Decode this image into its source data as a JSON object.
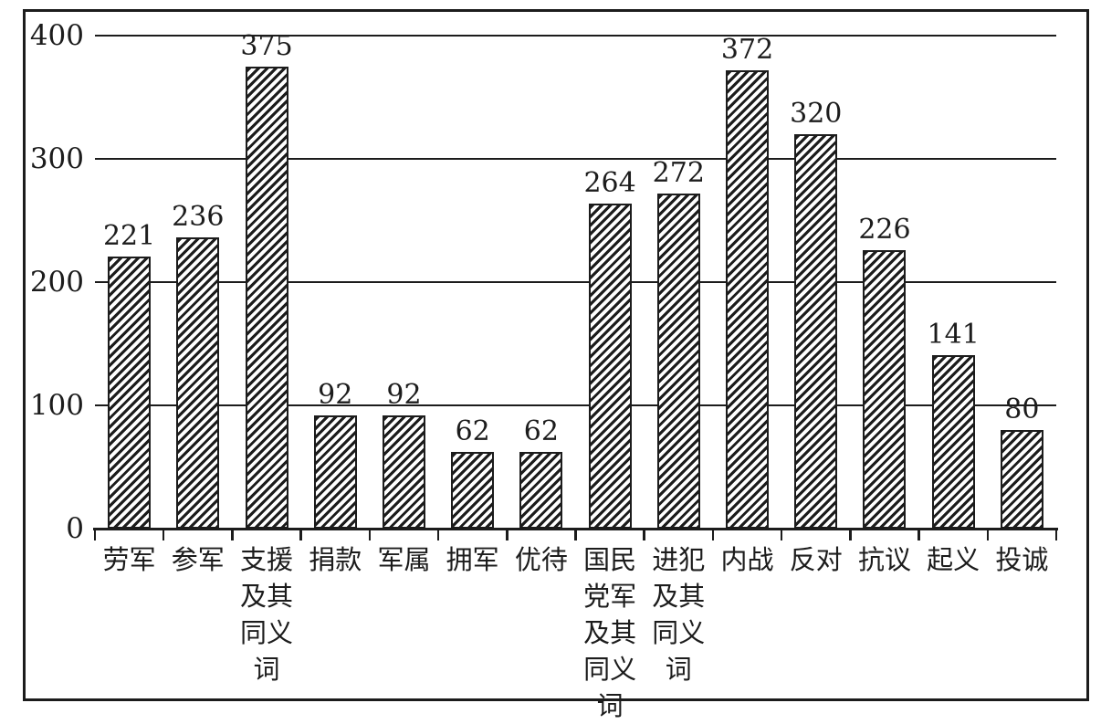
{
  "figure": {
    "background": "#ffffff",
    "ink_color": "#1c1c1c",
    "frame": "single black rectangle border"
  },
  "chart_data": {
    "type": "bar",
    "categories": [
      "劳军",
      "参军",
      "支援及其同义词",
      "捐款",
      "军属",
      "拥军",
      "优待",
      "国民党军及其同义词",
      "进犯及其同义词",
      "内战",
      "反对",
      "抗议",
      "起义",
      "投诚"
    ],
    "values": [
      221,
      236,
      375,
      92,
      92,
      62,
      62,
      264,
      272,
      372,
      320,
      226,
      141,
      80
    ],
    "title": "",
    "xlabel": "",
    "ylabel": "",
    "ylim": [
      0,
      400
    ],
    "yticks": [
      0,
      100,
      200,
      300,
      400
    ],
    "grid": true,
    "legend_position": "none",
    "bar_style": "white fill with black diagonal hatch (/) and black outline",
    "data_labels": true,
    "label_wrap": "category labels wrap at 2 characters per line"
  }
}
